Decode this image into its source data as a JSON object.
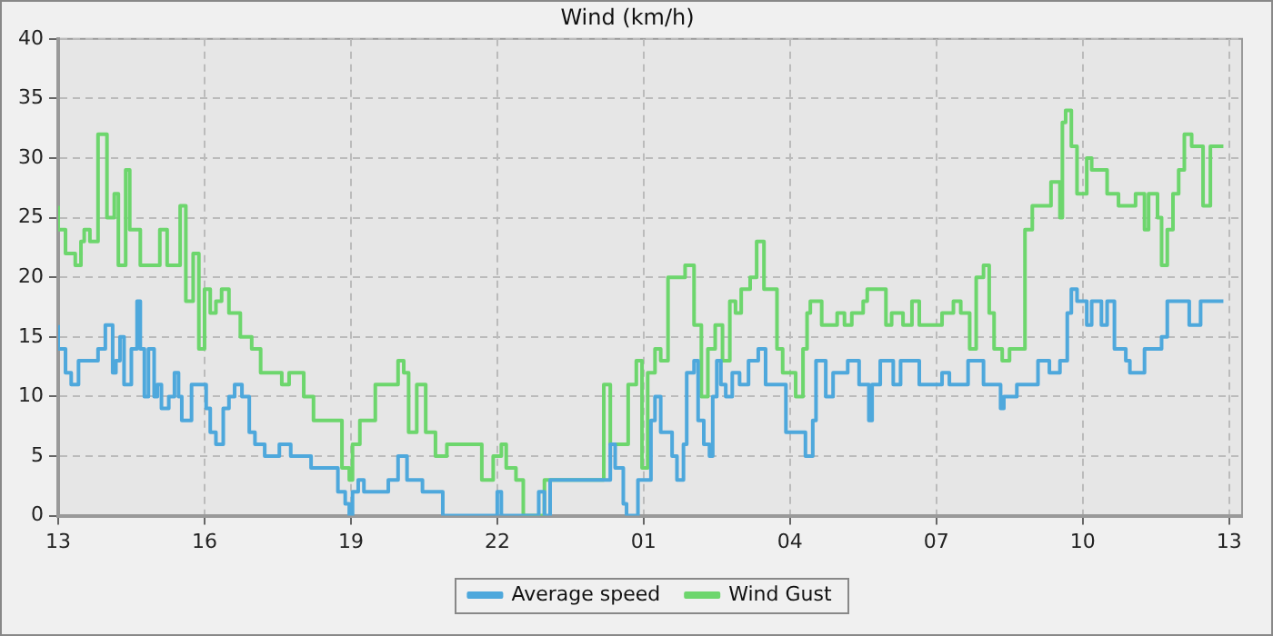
{
  "chart_data": {
    "type": "step",
    "title": "Wind (km/h)",
    "xlim": [
      "--01-01T13:00",
      "--01-02T13:16"
    ],
    "xticks": [
      {
        "value": "--01-01T13:00",
        "label": "13"
      },
      {
        "value": "--01-01T16:00",
        "label": "16"
      },
      {
        "value": "--01-01T19:00",
        "label": "19"
      },
      {
        "value": "--01-01T22:00",
        "label": "22"
      },
      {
        "value": "--01-02T01:00",
        "label": "01"
      },
      {
        "value": "--01-02T04:00",
        "label": "04"
      },
      {
        "value": "--01-02T07:00",
        "label": "07"
      },
      {
        "value": "--01-02T10:00",
        "label": "10"
      },
      {
        "value": "--01-02T13:00",
        "label": "13"
      }
    ],
    "ylim": [
      0,
      40
    ],
    "yticks": [
      0,
      5,
      10,
      15,
      20,
      25,
      30,
      35,
      40
    ],
    "grid": true,
    "legend": "bottom",
    "marker": "none",
    "line_style": "solid",
    "series": [
      {
        "name": "Average speed",
        "color": "#4ea8dc",
        "x": [
          "--01-01T13:00",
          "--01-01T13:09",
          "--01-01T13:16",
          "--01-01T13:25",
          "--01-01T13:49",
          "--01-01T13:58",
          "--01-01T14:07",
          "--01-01T14:11",
          "--01-01T14:16",
          "--01-01T14:21",
          "--01-01T14:30",
          "--01-01T14:37",
          "--01-01T14:41",
          "--01-01T14:46",
          "--01-01T14:51",
          "--01-01T14:58",
          "--01-01T15:02",
          "--01-01T15:07",
          "--01-01T15:16",
          "--01-01T15:23",
          "--01-01T15:28",
          "--01-01T15:32",
          "--01-01T15:44",
          "--01-01T16:02",
          "--01-01T16:07",
          "--01-01T16:14",
          "--01-01T16:23",
          "--01-01T16:30",
          "--01-01T16:37",
          "--01-01T16:46",
          "--01-01T16:55",
          "--01-01T17:02",
          "--01-01T17:14",
          "--01-01T17:32",
          "--01-01T17:46",
          "--01-01T18:11",
          "--01-01T18:44",
          "--01-01T18:53",
          "--01-01T18:58",
          "--01-01T19:02",
          "--01-01T19:09",
          "--01-01T19:16",
          "--01-01T19:46",
          "--01-01T19:58",
          "--01-01T20:09",
          "--01-01T20:28",
          "--01-01T20:53",
          "--01-01T22:00",
          "--01-01T22:05",
          "--01-01T22:51",
          "--01-01T22:58",
          "--01-01T23:05",
          "--01-02T00:19",
          "--01-02T00:25",
          "--01-02T00:35",
          "--01-02T00:39",
          "--01-02T00:53",
          "--01-02T01:09",
          "--01-02T01:14",
          "--01-02T01:21",
          "--01-02T01:35",
          "--01-02T01:41",
          "--01-02T01:49",
          "--01-02T01:53",
          "--01-02T02:02",
          "--01-02T02:07",
          "--01-02T02:14",
          "--01-02T02:21",
          "--01-02T02:25",
          "--01-02T02:30",
          "--01-02T02:35",
          "--01-02T02:41",
          "--01-02T02:49",
          "--01-02T02:58",
          "--01-02T03:09",
          "--01-02T03:21",
          "--01-02T03:30",
          "--01-02T03:55",
          "--01-02T04:19",
          "--01-02T04:28",
          "--01-02T04:32",
          "--01-02T04:44",
          "--01-02T04:53",
          "--01-02T05:11",
          "--01-02T05:25",
          "--01-02T05:37",
          "--01-02T05:41",
          "--01-02T05:51",
          "--01-02T06:07",
          "--01-02T06:16",
          "--01-02T06:39",
          "--01-02T07:07",
          "--01-02T07:16",
          "--01-02T07:39",
          "--01-02T07:58",
          "--01-02T08:19",
          "--01-02T08:23",
          "--01-02T08:39",
          "--01-02T09:05",
          "--01-02T09:19",
          "--01-02T09:32",
          "--01-02T09:41",
          "--01-02T09:46",
          "--01-02T09:53",
          "--01-02T10:05",
          "--01-02T10:11",
          "--01-02T10:23",
          "--01-02T10:30",
          "--01-02T10:39",
          "--01-02T10:53",
          "--01-02T10:58",
          "--01-02T11:16",
          "--01-02T11:37",
          "--01-02T11:44",
          "--01-02T12:11",
          "--01-02T12:25",
          "--01-02T12:53"
        ],
        "values": [
          16,
          14,
          12,
          11,
          13,
          14,
          16,
          12,
          13,
          15,
          11,
          14,
          18,
          14,
          10,
          14,
          10,
          11,
          9,
          10,
          12,
          10,
          8,
          11,
          9,
          7,
          6,
          9,
          10,
          11,
          10,
          7,
          6,
          5,
          6,
          5,
          4,
          2,
          1,
          0,
          2,
          3,
          2,
          3,
          5,
          3,
          2,
          0,
          2,
          0,
          2,
          0,
          3,
          6,
          4,
          1,
          0,
          3,
          8,
          10,
          7,
          5,
          3,
          6,
          12,
          13,
          8,
          6,
          5,
          10,
          13,
          11,
          10,
          12,
          11,
          13,
          14,
          11,
          7,
          5,
          8,
          13,
          10,
          12,
          13,
          11,
          8,
          11,
          13,
          11,
          13,
          11,
          12,
          11,
          13,
          11,
          9,
          10,
          11,
          13,
          12,
          13,
          17,
          19,
          18,
          16,
          18,
          16,
          18,
          14,
          13,
          12,
          14,
          15,
          18,
          16,
          18
        ]
      },
      {
        "name": "Wind Gust",
        "color": "#6dd66d",
        "x": [
          "--01-01T13:00",
          "--01-01T13:09",
          "--01-01T13:21",
          "--01-01T13:28",
          "--01-01T13:32",
          "--01-01T13:39",
          "--01-01T13:49",
          "--01-01T14:00",
          "--01-01T14:09",
          "--01-01T14:14",
          "--01-01T14:23",
          "--01-01T14:28",
          "--01-01T14:41",
          "--01-01T15:05",
          "--01-01T15:14",
          "--01-01T15:30",
          "--01-01T15:37",
          "--01-01T15:46",
          "--01-01T15:53",
          "--01-01T16:00",
          "--01-01T16:07",
          "--01-01T16:14",
          "--01-01T16:21",
          "--01-01T16:30",
          "--01-01T16:44",
          "--01-01T16:58",
          "--01-01T17:09",
          "--01-01T17:35",
          "--01-01T17:44",
          "--01-01T18:02",
          "--01-01T18:14",
          "--01-01T18:49",
          "--01-01T18:58",
          "--01-01T19:02",
          "--01-01T19:11",
          "--01-01T19:30",
          "--01-01T19:58",
          "--01-01T20:05",
          "--01-01T20:11",
          "--01-01T20:21",
          "--01-01T20:32",
          "--01-01T20:44",
          "--01-01T20:58",
          "--01-01T21:41",
          "--01-01T21:55",
          "--01-01T22:05",
          "--01-01T22:11",
          "--01-01T22:23",
          "--01-01T22:32",
          "--01-01T22:58",
          "--01-02T00:11",
          "--01-02T00:19",
          "--01-02T00:41",
          "--01-02T00:51",
          "--01-02T00:58",
          "--01-02T01:05",
          "--01-02T01:14",
          "--01-02T01:21",
          "--01-02T01:30",
          "--01-02T01:51",
          "--01-02T02:02",
          "--01-02T02:11",
          "--01-02T02:19",
          "--01-02T02:28",
          "--01-02T02:37",
          "--01-02T02:46",
          "--01-02T02:53",
          "--01-02T03:00",
          "--01-02T03:11",
          "--01-02T03:19",
          "--01-02T03:28",
          "--01-02T03:44",
          "--01-02T03:51",
          "--01-02T04:07",
          "--01-02T04:16",
          "--01-02T04:21",
          "--01-02T04:25",
          "--01-02T04:39",
          "--01-02T04:58",
          "--01-02T05:07",
          "--01-02T05:16",
          "--01-02T05:30",
          "--01-02T05:35",
          "--01-02T05:58",
          "--01-02T06:05",
          "--01-02T06:19",
          "--01-02T06:30",
          "--01-02T06:39",
          "--01-02T07:07",
          "--01-02T07:21",
          "--01-02T07:30",
          "--01-02T07:41",
          "--01-02T07:49",
          "--01-02T07:58",
          "--01-02T08:05",
          "--01-02T08:11",
          "--01-02T08:21",
          "--01-02T08:30",
          "--01-02T08:49",
          "--01-02T08:58",
          "--01-02T09:21",
          "--01-02T09:32",
          "--01-02T09:35",
          "--01-02T09:39",
          "--01-02T09:46",
          "--01-02T09:53",
          "--01-02T10:05",
          "--01-02T10:11",
          "--01-02T10:30",
          "--01-02T10:44",
          "--01-02T11:05",
          "--01-02T11:16",
          "--01-02T11:21",
          "--01-02T11:32",
          "--01-02T11:37",
          "--01-02T11:44",
          "--01-02T11:51",
          "--01-02T11:58",
          "--01-02T12:05",
          "--01-02T12:14",
          "--01-02T12:28",
          "--01-02T12:37",
          "--01-02T12:44",
          "--01-02T12:53"
        ],
        "values": [
          26,
          24,
          22,
          21,
          23,
          24,
          23,
          32,
          25,
          27,
          21,
          29,
          24,
          21,
          24,
          21,
          26,
          18,
          22,
          14,
          19,
          17,
          18,
          19,
          17,
          15,
          14,
          12,
          11,
          12,
          10,
          8,
          4,
          3,
          6,
          8,
          11,
          13,
          12,
          7,
          11,
          7,
          5,
          6,
          3,
          5,
          6,
          4,
          3,
          0,
          3,
          11,
          6,
          11,
          13,
          4,
          12,
          14,
          13,
          20,
          21,
          16,
          10,
          14,
          16,
          13,
          18,
          17,
          19,
          20,
          23,
          19,
          14,
          12,
          10,
          14,
          17,
          18,
          16,
          17,
          16,
          17,
          18,
          19,
          16,
          17,
          16,
          18,
          16,
          17,
          18,
          17,
          14,
          20,
          21,
          17,
          14,
          13,
          14,
          24,
          26,
          28,
          25,
          33,
          34,
          31,
          27,
          30,
          29,
          27,
          26,
          27,
          24,
          27,
          25,
          21,
          24,
          27,
          29,
          32,
          31,
          26,
          31,
          31
        ]
      }
    ]
  }
}
